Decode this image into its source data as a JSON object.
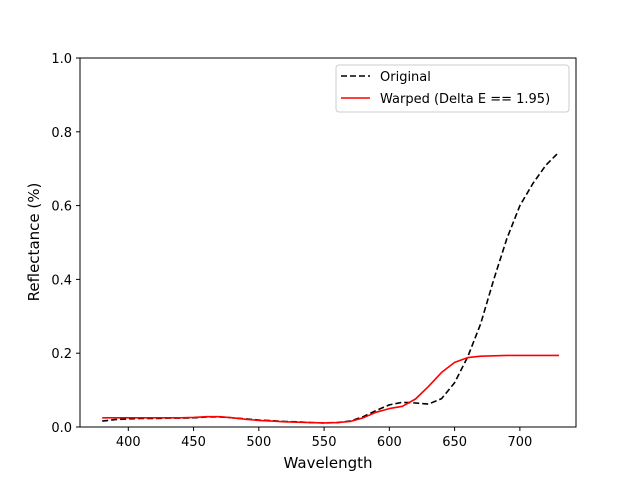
{
  "chart_data": {
    "type": "line",
    "title": "",
    "xlabel": "Wavelength",
    "ylabel": "Reflectance (%)",
    "xlim": [
      363,
      743
    ],
    "ylim": [
      0,
      1.0
    ],
    "xticks": [
      400,
      450,
      500,
      550,
      600,
      650,
      700
    ],
    "yticks": [
      0.0,
      0.2,
      0.4,
      0.6,
      0.8,
      1.0
    ],
    "xtick_labels": [
      "400",
      "450",
      "500",
      "550",
      "600",
      "650",
      "700"
    ],
    "ytick_labels": [
      "0.0",
      "0.2",
      "0.4",
      "0.6",
      "0.8",
      "1.0"
    ],
    "grid": false,
    "legend_position": "top-right",
    "series": [
      {
        "name": "Original",
        "color": "#000000",
        "style": "dashed",
        "x": [
          380,
          390,
          400,
          410,
          420,
          430,
          440,
          450,
          460,
          470,
          480,
          490,
          500,
          510,
          520,
          530,
          540,
          550,
          560,
          570,
          580,
          590,
          600,
          610,
          620,
          630,
          640,
          650,
          660,
          670,
          680,
          690,
          700,
          710,
          720,
          730
        ],
        "y": [
          0.016,
          0.02,
          0.022,
          0.023,
          0.023,
          0.024,
          0.024,
          0.025,
          0.027,
          0.027,
          0.025,
          0.022,
          0.019,
          0.017,
          0.015,
          0.014,
          0.012,
          0.011,
          0.012,
          0.016,
          0.028,
          0.045,
          0.06,
          0.067,
          0.065,
          0.062,
          0.077,
          0.12,
          0.19,
          0.28,
          0.4,
          0.51,
          0.6,
          0.66,
          0.71,
          0.745
        ]
      },
      {
        "name": "Warped (Delta E == 1.95)",
        "color": "#ff0000",
        "style": "solid",
        "x": [
          380,
          390,
          400,
          410,
          420,
          430,
          440,
          450,
          460,
          470,
          480,
          490,
          500,
          510,
          520,
          530,
          540,
          550,
          560,
          570,
          580,
          590,
          600,
          610,
          620,
          630,
          640,
          650,
          660,
          670,
          680,
          690,
          700,
          710,
          720,
          730
        ],
        "y": [
          0.025,
          0.025,
          0.025,
          0.025,
          0.025,
          0.025,
          0.025,
          0.026,
          0.028,
          0.028,
          0.025,
          0.021,
          0.018,
          0.016,
          0.014,
          0.013,
          0.012,
          0.011,
          0.012,
          0.015,
          0.025,
          0.04,
          0.05,
          0.056,
          0.076,
          0.11,
          0.148,
          0.175,
          0.188,
          0.192,
          0.193,
          0.194,
          0.194,
          0.194,
          0.194,
          0.194
        ]
      }
    ]
  }
}
